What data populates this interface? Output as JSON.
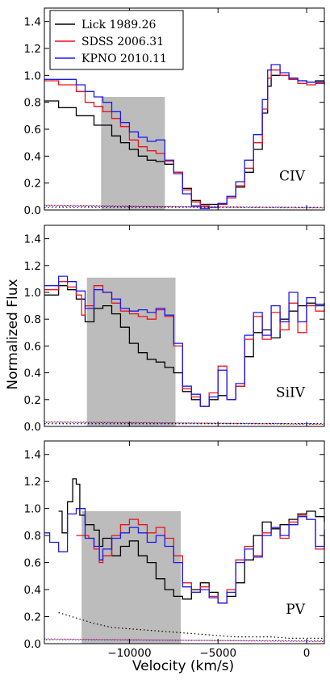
{
  "chart_data": {
    "type": "line",
    "xlabel": "Velocity (km/s)",
    "ylabel": "Normalized Flux",
    "xlim": [
      -14800,
      1000
    ],
    "ylim": [
      0,
      1.5
    ],
    "x_ticks": [
      -10000,
      -5000,
      0
    ],
    "x_tick_labels": [
      "−10000",
      "−5000",
      "0"
    ],
    "y_ticks": [
      0.0,
      0.2,
      0.4,
      0.6,
      0.8,
      1.0,
      1.2,
      1.4
    ],
    "y_tick_labels": [
      "0.0",
      "0.2",
      "0.4",
      "0.6",
      "0.8",
      "1.0",
      "1.2",
      "1.4"
    ],
    "legend": {
      "placement": "top-left",
      "entries": [
        {
          "name": "Lick 1989.26",
          "color": "#000000"
        },
        {
          "name": "SDSS 2006.31",
          "color": "#e8141c"
        },
        {
          "name": "KPNO 2010.11",
          "color": "#1a1aee"
        }
      ]
    },
    "panels": [
      {
        "label": "CIV",
        "shade": {
          "x": [
            -11600,
            -8000
          ],
          "y": [
            0,
            0.84
          ]
        },
        "series": [
          {
            "name": "Lick 1989.26",
            "color": "#000000",
            "x": [
              -14800,
              -14000,
              -13000,
              -12000,
              -11000,
              -10500,
              -10000,
              -9500,
              -9000,
              -8500,
              -8000,
              -7500,
              -7000,
              -6500,
              -6000,
              -5500,
              -5000,
              -4500,
              -4000,
              -3500,
              -3000,
              -2500,
              -2200,
              -2000,
              -1500,
              -1000,
              -500,
              0,
              500,
              1000
            ],
            "y": [
              0.81,
              0.76,
              0.7,
              0.63,
              0.55,
              0.5,
              0.45,
              0.4,
              0.37,
              0.36,
              0.34,
              0.28,
              0.16,
              0.07,
              0.04,
              0.04,
              0.05,
              0.1,
              0.17,
              0.28,
              0.45,
              0.72,
              0.92,
              1.0,
              1.0,
              0.97,
              0.96,
              0.95,
              0.96,
              0.96
            ]
          },
          {
            "name": "SDSS 2006.31",
            "color": "#e8141c",
            "x": [
              -14800,
              -14000,
              -13000,
              -12500,
              -12000,
              -11500,
              -11000,
              -10500,
              -10000,
              -9500,
              -9000,
              -8500,
              -8000,
              -7500,
              -7000,
              -6500,
              -6000,
              -5500,
              -5000,
              -4500,
              -4000,
              -3500,
              -3000,
              -2500,
              -2200,
              -2000,
              -1500,
              -1000,
              -500,
              0,
              500,
              1000
            ],
            "y": [
              0.96,
              0.93,
              0.88,
              0.8,
              0.77,
              0.73,
              0.68,
              0.62,
              0.52,
              0.47,
              0.44,
              0.42,
              0.36,
              0.28,
              0.15,
              0.06,
              0.03,
              0.02,
              0.04,
              0.09,
              0.18,
              0.31,
              0.5,
              0.75,
              0.98,
              1.04,
              1.0,
              0.97,
              0.94,
              0.93,
              0.94,
              0.93
            ]
          },
          {
            "name": "KPNO 2010.11",
            "color": "#1a1aee",
            "x": [
              -14800,
              -14000,
              -13000,
              -12500,
              -12000,
              -11500,
              -11000,
              -10500,
              -10000,
              -9500,
              -9000,
              -8500,
              -8000,
              -7500,
              -7000,
              -6500,
              -6000,
              -5500,
              -5000,
              -4500,
              -4000,
              -3500,
              -3000,
              -2500,
              -2200,
              -2000,
              -1500,
              -1000,
              -500,
              0,
              500,
              1000
            ],
            "y": [
              0.97,
              0.97,
              0.93,
              0.88,
              0.84,
              0.8,
              0.73,
              0.65,
              0.58,
              0.54,
              0.51,
              0.52,
              0.37,
              0.27,
              0.12,
              0.03,
              0.01,
              0.02,
              0.05,
              0.1,
              0.21,
              0.37,
              0.56,
              0.82,
              1.04,
              1.08,
              1.02,
              0.98,
              0.96,
              0.95,
              0.95,
              0.94
            ]
          }
        ]
      },
      {
        "label": "SiIV",
        "shade": {
          "x": [
            -12400,
            -7400
          ],
          "y": [
            0,
            1.11
          ]
        },
        "series": [
          {
            "name": "Lick 1989.26",
            "color": "#000000",
            "x": [
              -14800,
              -14000,
              -13500,
              -13000,
              -12500,
              -12000,
              -11500,
              -11000,
              -10500,
              -10000,
              -9500,
              -9000,
              -8500,
              -8000,
              -7500,
              -7000,
              -6500,
              -6000,
              -5500,
              -5000,
              -4500,
              -4000,
              -3500,
              -3000,
              -2500,
              -2000,
              -1500,
              -1000,
              -500,
              0,
              500,
              1000
            ],
            "y": [
              0.98,
              1.05,
              1.02,
              0.95,
              0.78,
              0.88,
              0.9,
              0.84,
              0.74,
              0.62,
              0.55,
              0.5,
              0.48,
              0.44,
              0.4,
              0.26,
              0.2,
              0.15,
              0.2,
              0.23,
              0.2,
              0.3,
              0.52,
              0.7,
              0.72,
              0.66,
              0.8,
              0.86,
              0.9,
              0.92,
              0.91,
              0.92
            ]
          },
          {
            "name": "SDSS 2006.31",
            "color": "#e8141c",
            "x": [
              -14800,
              -14000,
              -13500,
              -13000,
              -12700,
              -12500,
              -12000,
              -11500,
              -11000,
              -10500,
              -10000,
              -9500,
              -9000,
              -8500,
              -8000,
              -7500,
              -7000,
              -6500,
              -6000,
              -5500,
              -5000,
              -4500,
              -4000,
              -3500,
              -3000,
              -2500,
              -2000,
              -1500,
              -1000,
              -500,
              0,
              500,
              1000
            ],
            "y": [
              1.02,
              1.08,
              1.04,
              0.98,
              0.83,
              0.9,
              1.05,
              1.0,
              0.92,
              0.86,
              0.84,
              0.82,
              0.8,
              0.87,
              0.82,
              0.6,
              0.28,
              0.22,
              0.15,
              0.25,
              0.45,
              0.2,
              0.3,
              0.65,
              0.82,
              0.65,
              0.85,
              0.72,
              0.92,
              0.7,
              0.9,
              0.86,
              0.88
            ]
          },
          {
            "name": "KPNO 2010.11",
            "color": "#1a1aee",
            "x": [
              -14800,
              -14000,
              -13500,
              -13000,
              -12500,
              -12000,
              -11500,
              -11000,
              -10500,
              -10000,
              -9500,
              -9000,
              -8500,
              -8000,
              -7500,
              -7000,
              -6500,
              -6000,
              -5500,
              -5000,
              -4500,
              -4000,
              -3500,
              -3000,
              -2500,
              -2000,
              -1500,
              -1000,
              -500,
              0,
              500,
              1000
            ],
            "y": [
              1.05,
              1.12,
              1.08,
              1.01,
              0.88,
              1.02,
              1.0,
              0.95,
              0.88,
              0.86,
              0.87,
              0.85,
              0.88,
              0.83,
              0.62,
              0.3,
              0.24,
              0.15,
              0.22,
              0.42,
              0.2,
              0.32,
              0.68,
              0.85,
              0.68,
              0.9,
              0.78,
              1.0,
              0.78,
              0.96,
              0.9,
              0.92
            ]
          }
        ]
      },
      {
        "label": "PV",
        "shade": {
          "x": [
            -12700,
            -7100
          ],
          "y": [
            0,
            0.98
          ]
        },
        "series": [
          {
            "name": "Lick 1989.26",
            "color": "#000000",
            "x": [
              -14000,
              -13800,
              -13500,
              -13200,
              -13000,
              -12800,
              -12500,
              -12000,
              -11700,
              -11500,
              -11000,
              -10500,
              -10000,
              -9500,
              -9000,
              -8500,
              -8000,
              -7500,
              -7000,
              -6500,
              -6000,
              -5500,
              -5000,
              -4500,
              -4000,
              -3500,
              -3000,
              -2500,
              -2000,
              -1500,
              -1000,
              -500,
              0,
              500,
              1000
            ],
            "y": [
              0.98,
              0.82,
              1.05,
              1.22,
              1.18,
              0.95,
              0.88,
              0.84,
              0.72,
              0.78,
              0.65,
              0.72,
              0.76,
              0.65,
              0.6,
              0.48,
              0.4,
              0.35,
              0.33,
              0.4,
              0.45,
              0.38,
              0.3,
              0.35,
              0.45,
              0.62,
              0.8,
              0.9,
              0.85,
              0.88,
              0.92,
              0.96,
              0.98,
              0.94,
              0.9
            ]
          },
          {
            "name": "SDSS 2006.31",
            "color": "#e8141c",
            "x": [
              -13000,
              -12500,
              -12300,
              -12000,
              -11700,
              -11500,
              -11000,
              -10500,
              -10000,
              -9500,
              -9000,
              -8500,
              -8000,
              -7500,
              -7000,
              -6500,
              -6000,
              -5500,
              -5000,
              -4500,
              -4000,
              -3500,
              -3000,
              -2500,
              -2000,
              -1500,
              -1000,
              -500,
              0,
              500,
              1000
            ],
            "y": [
              0.8,
              0.8,
              0.78,
              0.7,
              0.6,
              0.65,
              0.8,
              0.88,
              0.92,
              0.88,
              0.82,
              0.86,
              0.78,
              0.65,
              0.45,
              0.38,
              0.42,
              0.35,
              0.3,
              0.4,
              0.62,
              0.72,
              0.65,
              0.82,
              0.86,
              0.78,
              0.9,
              0.95,
              0.92,
              0.7,
              0.8
            ]
          },
          {
            "name": "KPNO 2010.11",
            "color": "#1a1aee",
            "x": [
              -14800,
              -14500,
              -14000,
              -13500,
              -13000,
              -12500,
              -12000,
              -11700,
              -11500,
              -11000,
              -10500,
              -10000,
              -9500,
              -9000,
              -8500,
              -8000,
              -7500,
              -7000,
              -6500,
              -6000,
              -5500,
              -5000,
              -4500,
              -4000,
              -3500,
              -3000,
              -2500,
              -2000,
              -1500,
              -1000,
              -500,
              0,
              500,
              1000
            ],
            "y": [
              0.82,
              0.75,
              0.68,
              0.96,
              1.0,
              0.78,
              0.72,
              0.62,
              0.7,
              0.78,
              0.82,
              0.86,
              0.82,
              0.75,
              0.8,
              0.72,
              0.6,
              0.42,
              0.38,
              0.4,
              0.34,
              0.3,
              0.38,
              0.6,
              0.7,
              0.64,
              0.8,
              0.86,
              0.8,
              0.88,
              0.94,
              0.92,
              0.72,
              0.84
            ]
          }
        ]
      }
    ]
  }
}
